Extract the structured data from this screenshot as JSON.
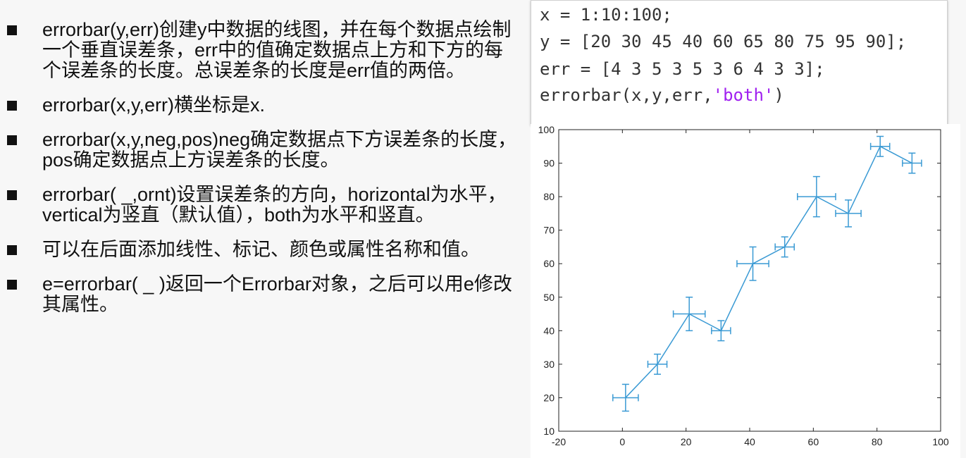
{
  "bullets": [
    {
      "text": "errorbar(y,err)创建y中数据的线图，并在每个数据点绘制一个垂直误差条，err中的值确定数据点上方和下方的每个误差条的长度。总误差条的长度是err值的两倍。"
    },
    {
      "text": "errorbar(x,y,err)横坐标是x."
    },
    {
      "text": "errorbar(x,y,neg,pos)neg确定数据点下方误差条的长度，pos确定数据点上方误差条的长度。"
    },
    {
      "text": "errorbar( _,ornt)设置误差条的方向，horizontal为水平，vertical为竖直（默认值），both为水平和竖直。"
    },
    {
      "text": "可以在后面添加线性、标记、颜色或属性名称和值。"
    },
    {
      "text": "e=errorbar( _ )返回一个Errorbar对象，之后可以用e修改其属性。"
    }
  ],
  "code": {
    "line1": "x = 1:10:100;",
    "line2": "y = [20 30 45 40 60 65 80 75 95 90];",
    "line3": "err = [4 3 5 3 5 3 6 4 3 3];",
    "line4_prefix": "errorbar(x,y,err,",
    "line4_string": "'both'",
    "line4_suffix": ")"
  },
  "chart_data": {
    "type": "line",
    "x": [
      1,
      11,
      21,
      31,
      41,
      51,
      61,
      71,
      81,
      91
    ],
    "y": [
      20,
      30,
      45,
      40,
      60,
      65,
      80,
      75,
      95,
      90
    ],
    "err": [
      4,
      3,
      5,
      3,
      5,
      3,
      6,
      4,
      3,
      3
    ],
    "error_orientation": "both",
    "xlim": [
      -20,
      100
    ],
    "ylim": [
      10,
      100
    ],
    "xticks": [
      -20,
      0,
      20,
      40,
      60,
      80,
      100
    ],
    "yticks": [
      10,
      20,
      30,
      40,
      50,
      60,
      70,
      80,
      90,
      100
    ],
    "color": "#3a9ad4",
    "grid": false
  }
}
